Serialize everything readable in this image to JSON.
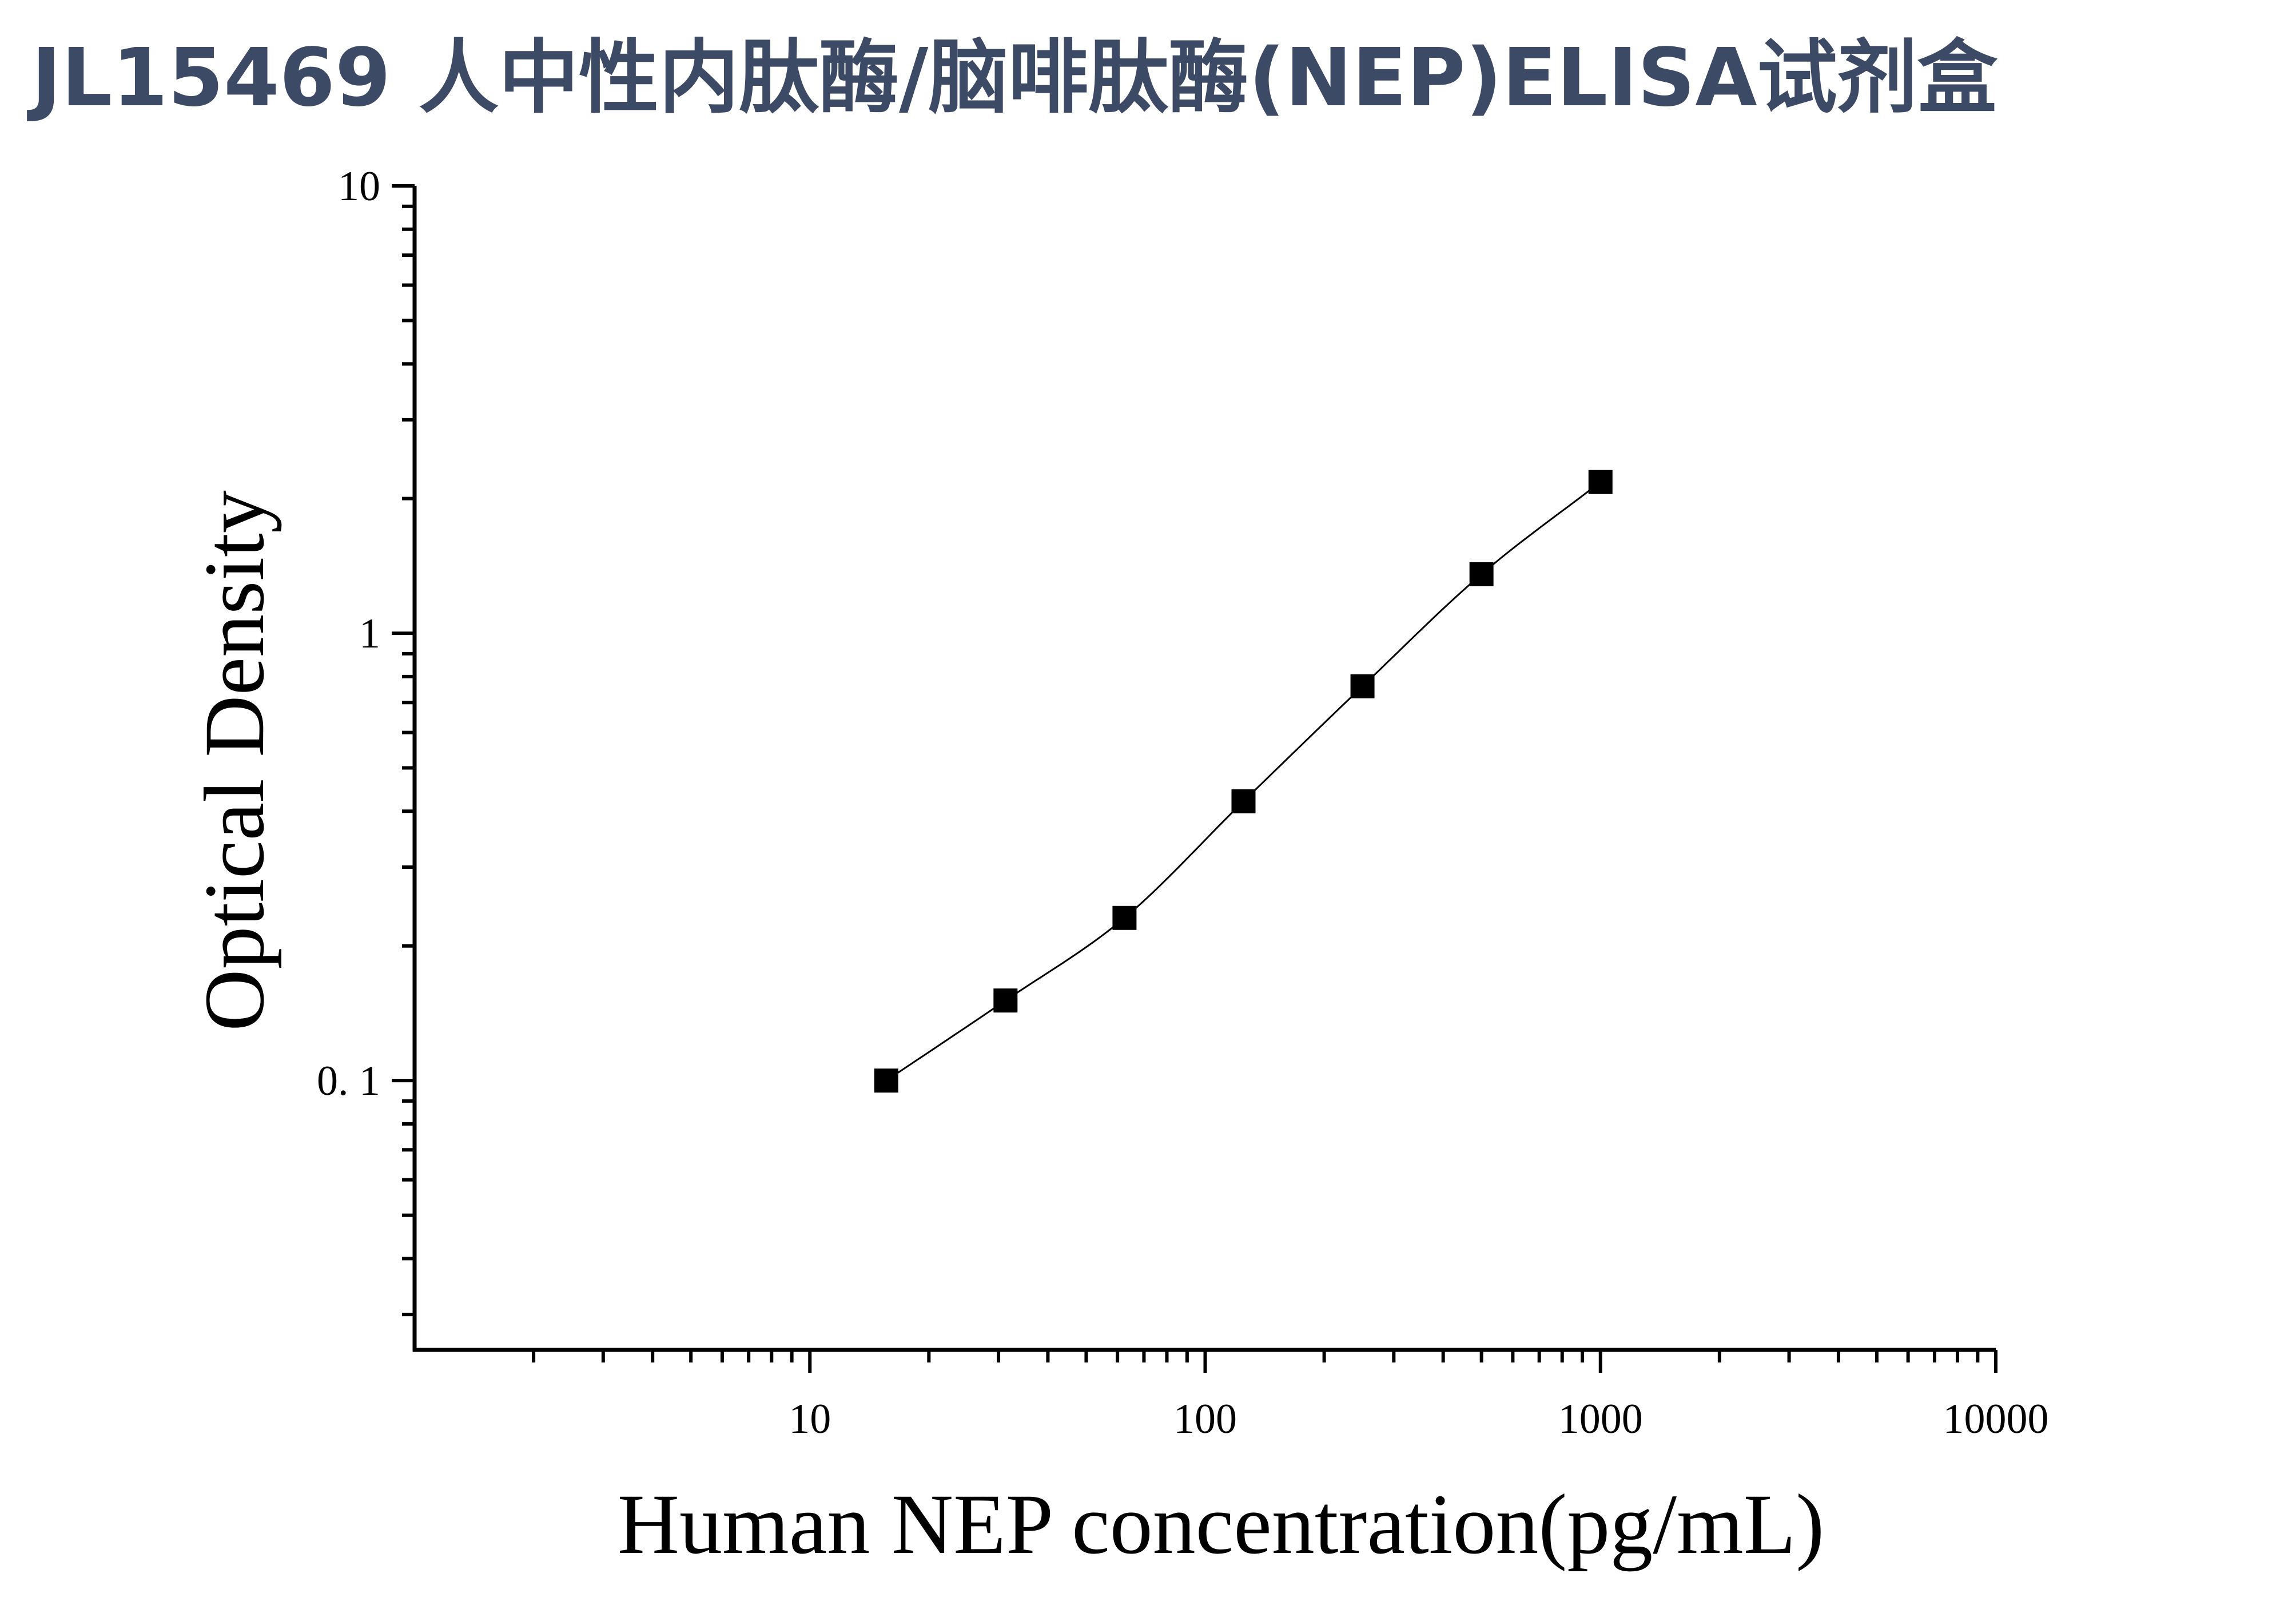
{
  "page": {
    "title": "JL15469 人中性内肽酶/脑啡肽酶(NEP)ELISA试剂盒"
  },
  "colors": {
    "title": "#3d4a66",
    "axes": "#000000",
    "marker": "#000000"
  },
  "chart_data": {
    "type": "scatter",
    "title": "",
    "xlabel": "Human NEP concentration(pg/mL)",
    "ylabel": "Optical Density",
    "x_scale": "log",
    "y_scale": "log",
    "xlim": [
      1,
      10000
    ],
    "ylim": [
      0.025,
      10
    ],
    "x_tick_labels": [
      "10",
      "100",
      "1000",
      "10000"
    ],
    "y_tick_labels": [
      "0. 1",
      "1",
      "10"
    ],
    "grid": false,
    "marker": "square",
    "fit_line": true,
    "series": [
      {
        "x": [
          15.6,
          31.25,
          62.5,
          125,
          250,
          500,
          1000
        ],
        "y": [
          0.1,
          0.151,
          0.231,
          0.421,
          0.761,
          1.355,
          2.178
        ]
      }
    ]
  }
}
